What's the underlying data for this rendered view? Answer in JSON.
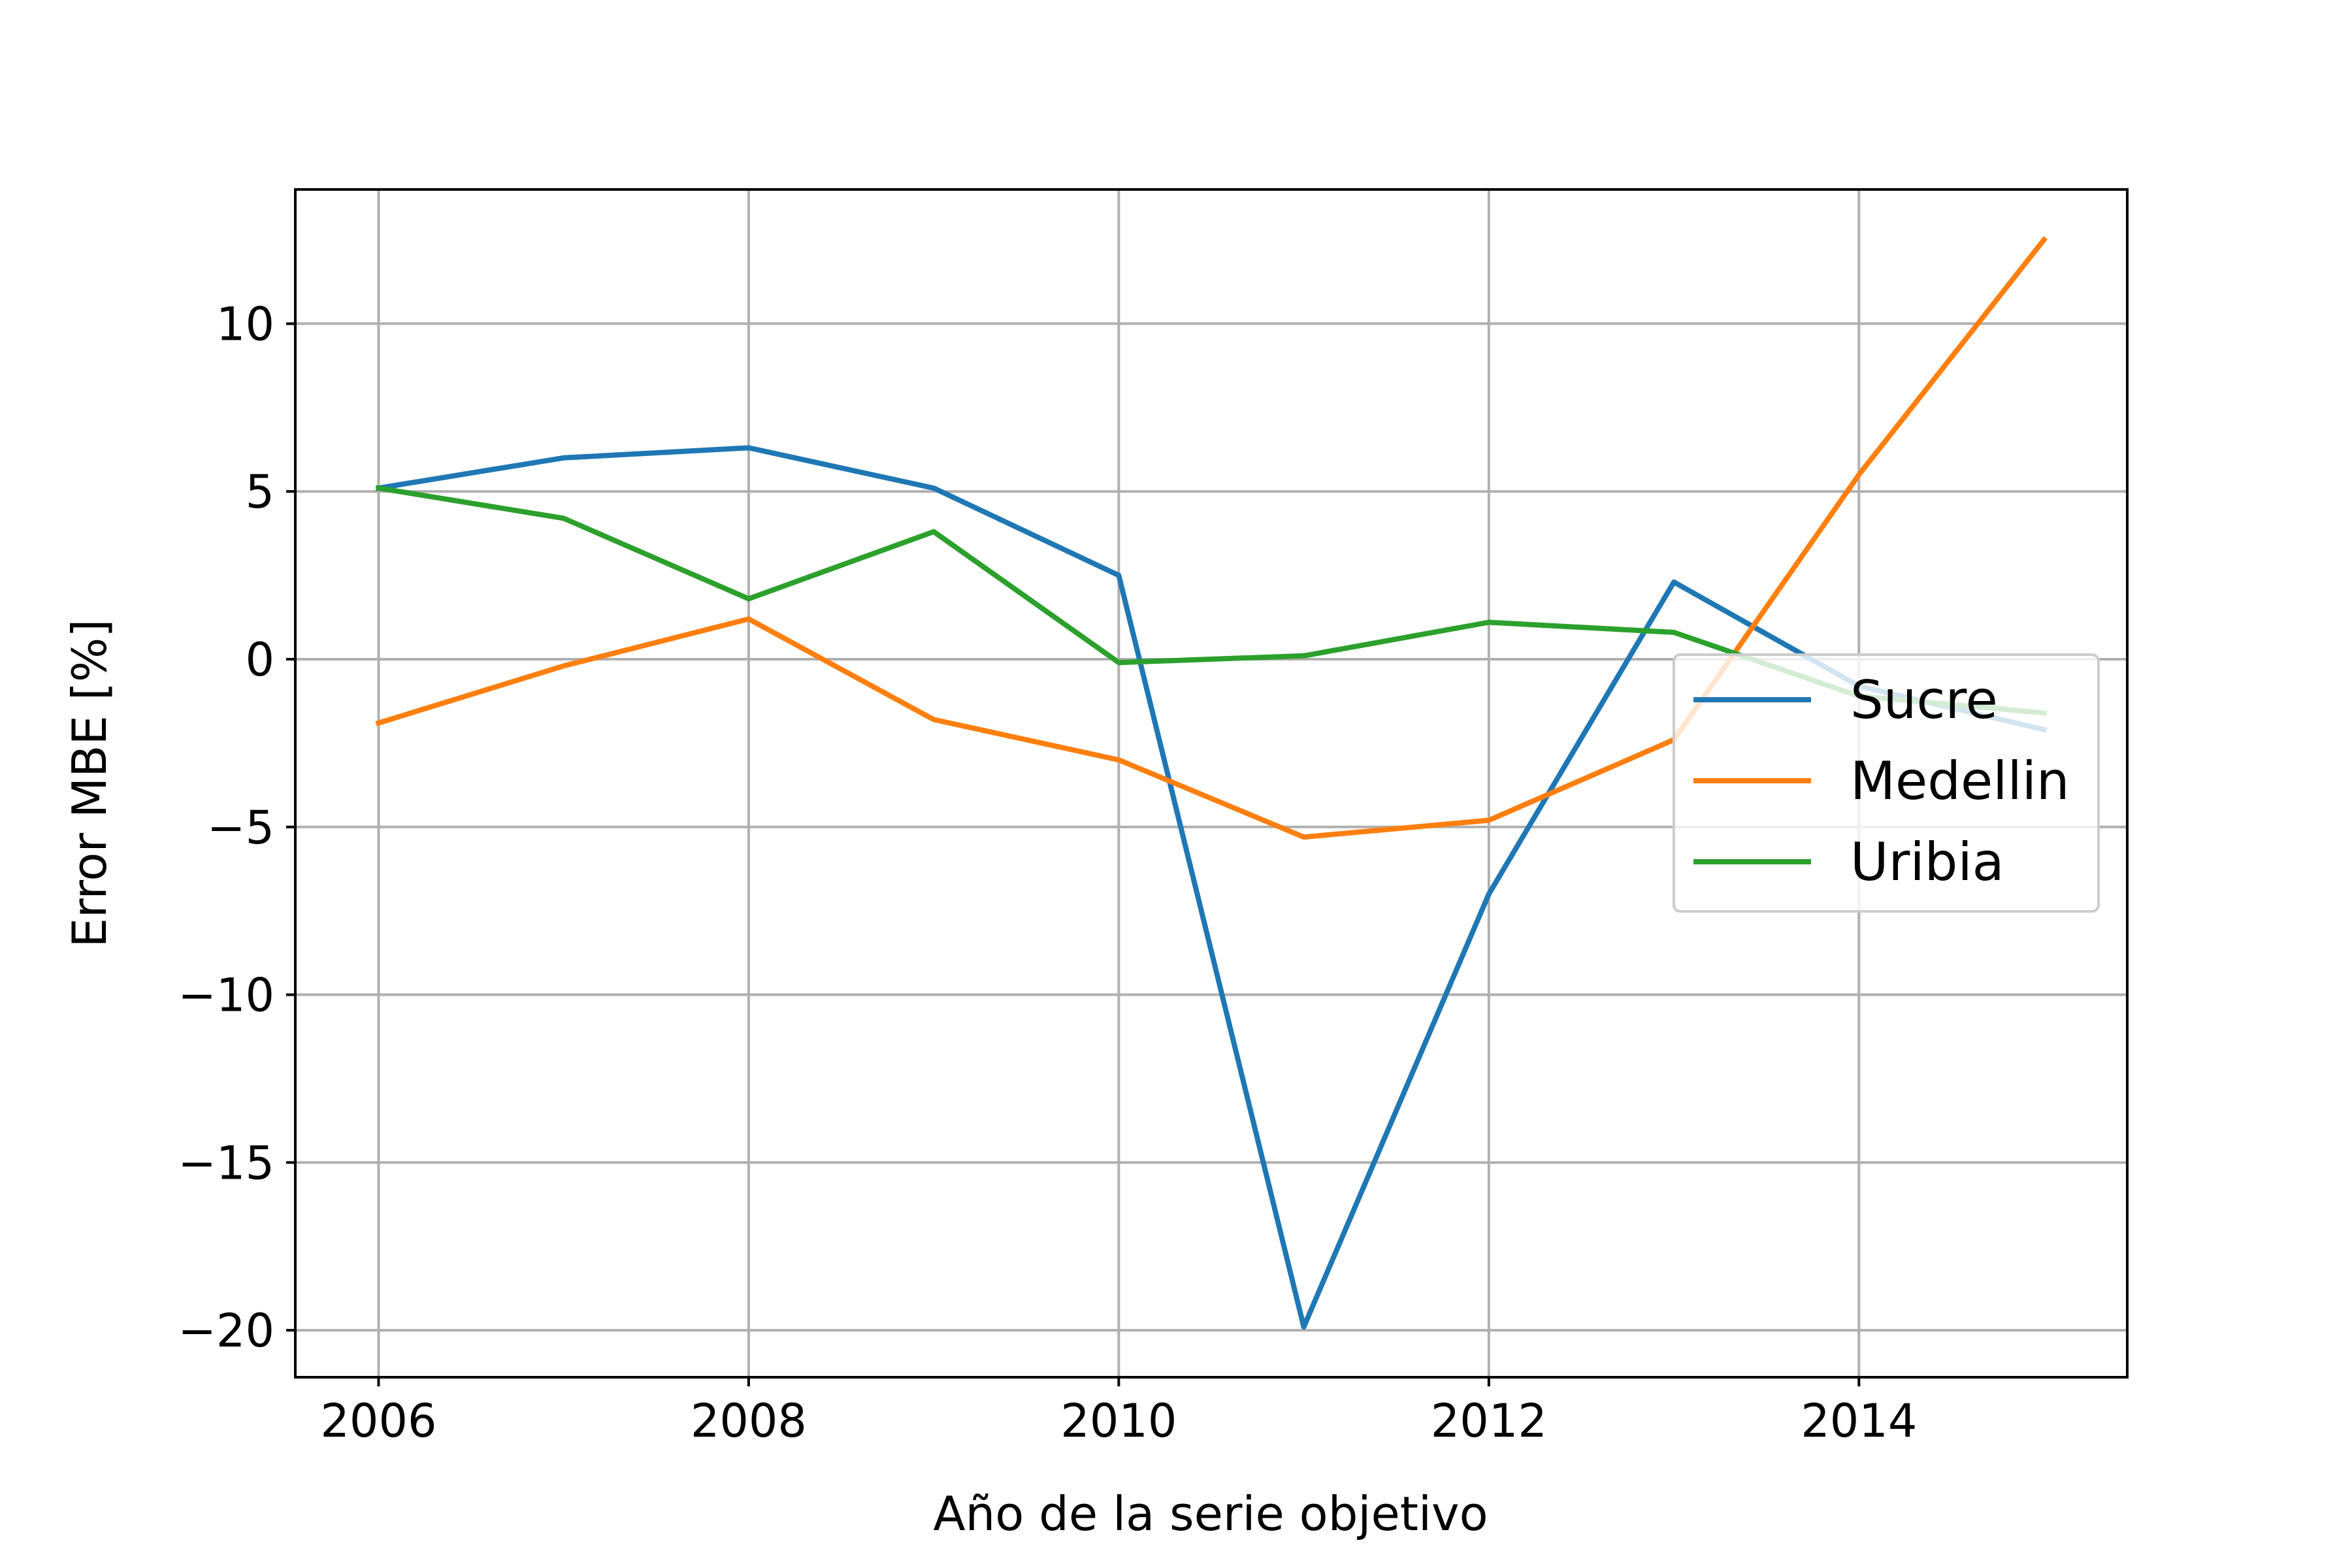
{
  "chart_data": {
    "type": "line",
    "title": "",
    "xlabel": "Año de la serie objetivo",
    "ylabel": "Error MBE [%]",
    "x": [
      2006,
      2007,
      2008,
      2009,
      2010,
      2011,
      2012,
      2013,
      2014,
      2015
    ],
    "series": [
      {
        "name": "Sucre",
        "color": "#1f77b4",
        "values": [
          5.1,
          6.0,
          6.3,
          5.1,
          2.5,
          -19.9,
          -7.0,
          2.3,
          -0.8,
          -2.1
        ]
      },
      {
        "name": "Medellin",
        "color": "#ff7f0e",
        "values": [
          -1.9,
          -0.2,
          1.2,
          -1.8,
          -3.0,
          -5.3,
          -4.8,
          -2.4,
          5.5,
          12.5
        ]
      },
      {
        "name": "Uribia",
        "color": "#2ca02c",
        "values": [
          5.1,
          4.2,
          1.8,
          3.8,
          -0.1,
          0.1,
          1.1,
          0.8,
          -1.1,
          -1.6
        ]
      }
    ],
    "xlim": [
      2005.55,
      2015.45
    ],
    "ylim": [
      -21.4,
      14.0
    ],
    "xticks": [
      2006,
      2008,
      2010,
      2012,
      2014
    ],
    "xtick_labels": [
      "2006",
      "2008",
      "2010",
      "2012",
      "2014"
    ],
    "yticks": [
      10,
      5,
      0,
      -5,
      -10,
      -15,
      -20
    ],
    "ytick_labels": [
      "10",
      "5",
      "0",
      "−5",
      "−10",
      "−15",
      "−20"
    ],
    "grid": true,
    "legend_position": "center-right"
  }
}
